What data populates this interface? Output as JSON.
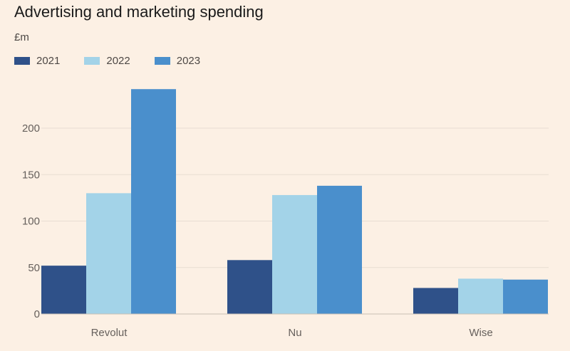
{
  "chart_data": {
    "type": "bar",
    "title": "Advertising and marketing spending",
    "ylabel": "£m",
    "xlabel": "",
    "categories": [
      "Revolut",
      "Nu",
      "Wise"
    ],
    "series": [
      {
        "name": "2021",
        "color": "#2F5189",
        "values": [
          52,
          58,
          28
        ]
      },
      {
        "name": "2022",
        "color": "#A3D3E8",
        "values": [
          130,
          128,
          38
        ]
      },
      {
        "name": "2023",
        "color": "#4A8FCC",
        "values": [
          242,
          138,
          37
        ]
      }
    ],
    "yticks": [
      0,
      50,
      100,
      150,
      200
    ],
    "ylim": [
      0,
      250
    ],
    "grid": true,
    "legend": "top-left"
  },
  "colors": {
    "background": "#FCF0E4",
    "gridline": "#E8DDD2",
    "baseline": "#C9BFB5"
  }
}
